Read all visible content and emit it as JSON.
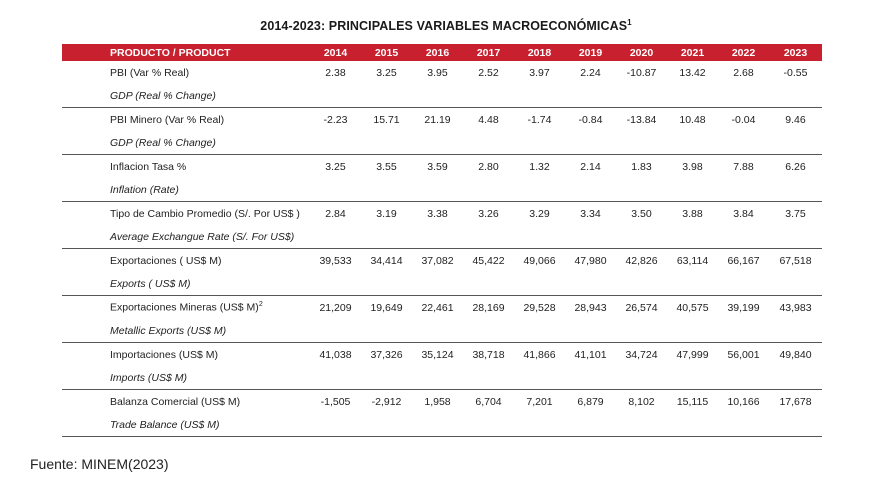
{
  "title": "2014-2023: PRINCIPALES VARIABLES MACROECONÓMICAS",
  "title_sup": "1",
  "header": {
    "product": "PRODUCTO / PRODUCT",
    "years": [
      "2014",
      "2015",
      "2016",
      "2017",
      "2018",
      "2019",
      "2020",
      "2021",
      "2022",
      "2023"
    ]
  },
  "rows": [
    {
      "es": "PBI (Var % Real)",
      "es_sup": "",
      "en": "GDP (Real % Change)",
      "values": [
        "2.38",
        "3.25",
        "3.95",
        "2.52",
        "3.97",
        "2.24",
        "-10.87",
        "13.42",
        "2.68",
        "-0.55"
      ]
    },
    {
      "es": "PBI Minero (Var % Real)",
      "es_sup": "",
      "en": "GDP (Real % Change)",
      "values": [
        "-2.23",
        "15.71",
        "21.19",
        "4.48",
        "-1.74",
        "-0.84",
        "-13.84",
        "10.48",
        "-0.04",
        "9.46"
      ]
    },
    {
      "es": "Inflacion Tasa %",
      "es_sup": "",
      "en": "Inflation  (Rate)",
      "values": [
        "3.25",
        "3.55",
        "3.59",
        "2.80",
        "1.32",
        "2.14",
        "1.83",
        "3.98",
        "7.88",
        "6.26"
      ]
    },
    {
      "es": "Tipo de Cambio Promedio (S/. Por US$ )",
      "es_sup": "",
      "en": "Average Exchangue Rate (S/. For US$)",
      "values": [
        "2.84",
        "3.19",
        "3.38",
        "3.26",
        "3.29",
        "3.34",
        "3.50",
        "3.88",
        "3.84",
        "3.75"
      ]
    },
    {
      "es": "Exportaciones ( US$ M)",
      "es_sup": "",
      "en": "Exports ( US$ M)",
      "values": [
        "39,533",
        "34,414",
        "37,082",
        "45,422",
        "49,066",
        "47,980",
        "42,826",
        "63,114",
        "66,167",
        "67,518"
      ]
    },
    {
      "es": "Exportaciones Mineras (US$ M)",
      "es_sup": "2",
      "en": "Metallic Exports (US$ M)",
      "values": [
        "21,209",
        "19,649",
        "22,461",
        "28,169",
        "29,528",
        "28,943",
        "26,574",
        "40,575",
        "39,199",
        "43,983"
      ]
    },
    {
      "es": "Importaciones (US$ M)",
      "es_sup": "",
      "en": "Imports (US$ M)",
      "values": [
        "41,038",
        "37,326",
        "35,124",
        "38,718",
        "41,866",
        "41,101",
        "34,724",
        "47,999",
        "56,001",
        "49,840"
      ]
    },
    {
      "es": "Balanza Comercial (US$ M)",
      "es_sup": "",
      "en": "Trade Balance (US$ M)",
      "values": [
        "-1,505",
        "-2,912",
        "1,958",
        "6,704",
        "7,201",
        "6,879",
        "8,102",
        "15,115",
        "10,166",
        "17,678"
      ]
    }
  ],
  "source": "Fuente: MINEM(2023)",
  "colors": {
    "header_bg": "#c8202f",
    "header_text": "#ffffff"
  }
}
